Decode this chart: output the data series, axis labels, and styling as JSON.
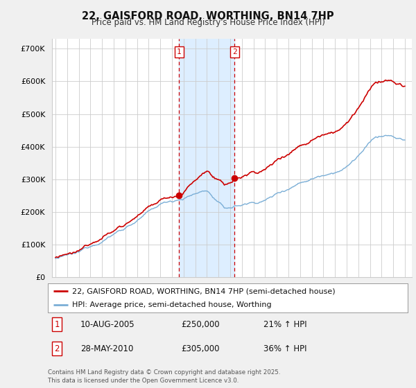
{
  "title1": "22, GAISFORD ROAD, WORTHING, BN14 7HP",
  "title2": "Price paid vs. HM Land Registry's House Price Index (HPI)",
  "ylabel_ticks": [
    "£0",
    "£100K",
    "£200K",
    "£300K",
    "£400K",
    "£500K",
    "£600K",
    "£700K"
  ],
  "ytick_values": [
    0,
    100000,
    200000,
    300000,
    400000,
    500000,
    600000,
    700000
  ],
  "ylim": [
    0,
    730000
  ],
  "sale1_date": 2005.62,
  "sale1_price": 250000,
  "sale1_label": "1",
  "sale1_pct": "21% ↑ HPI",
  "sale1_date_str": "10-AUG-2005",
  "sale2_date": 2010.38,
  "sale2_price": 305000,
  "sale2_label": "2",
  "sale2_pct": "36% ↑ HPI",
  "sale2_date_str": "28-MAY-2010",
  "legend_line1": "22, GAISFORD ROAD, WORTHING, BN14 7HP (semi-detached house)",
  "legend_line2": "HPI: Average price, semi-detached house, Worthing",
  "footer": "Contains HM Land Registry data © Crown copyright and database right 2025.\nThis data is licensed under the Open Government Licence v3.0.",
  "line_color_red": "#cc0000",
  "line_color_blue": "#7aaed6",
  "highlight_color": "#ddeeff",
  "background_color": "#f0f0f0",
  "plot_bg": "#ffffff",
  "grid_color": "#cccccc"
}
